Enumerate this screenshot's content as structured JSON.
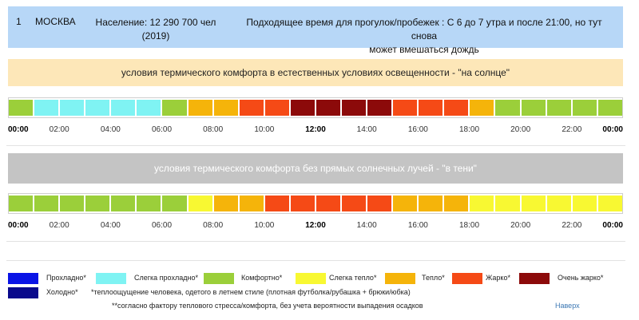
{
  "header": {
    "number": "1",
    "city": "МОСКВА",
    "population_line1": "Население: 12 290 700 чел",
    "population_line2": "(2019)",
    "best_time_line1": "Подходящее время для прогулок/пробежек : С 6 до 7 утра и после 21:00, но тут снова",
    "best_time_line2": "может вмешаться дождь"
  },
  "sun": {
    "title": "условия термического комфорта в естественных условиях освещенности - \"на солнце\"",
    "levels": [
      "comfortable",
      "slightly_cool",
      "slightly_cool",
      "slightly_cool",
      "slightly_cool",
      "slightly_cool",
      "comfortable",
      "warm",
      "warm",
      "hot",
      "hot",
      "very_hot",
      "very_hot",
      "very_hot",
      "very_hot",
      "hot",
      "hot",
      "hot",
      "warm",
      "comfortable",
      "comfortable",
      "comfortable",
      "comfortable",
      "comfortable"
    ]
  },
  "shade": {
    "title": "условия термического комфорта без прямых солнечных лучей - \"в тени\"",
    "levels": [
      "comfortable",
      "comfortable",
      "comfortable",
      "comfortable",
      "comfortable",
      "comfortable",
      "comfortable",
      "slightly_warm",
      "warm",
      "warm",
      "hot",
      "hot",
      "hot",
      "hot",
      "hot",
      "warm",
      "warm",
      "warm",
      "slightly_warm",
      "slightly_warm",
      "slightly_warm",
      "slightly_warm",
      "slightly_warm",
      "slightly_warm"
    ]
  },
  "axis_labels": [
    "00:00",
    "02:00",
    "04:00",
    "06:00",
    "08:00",
    "10:00",
    "12:00",
    "14:00",
    "16:00",
    "18:00",
    "20:00",
    "22:00",
    "00:00"
  ],
  "axis_bold": [
    true,
    false,
    false,
    false,
    false,
    false,
    true,
    false,
    false,
    false,
    false,
    false,
    true
  ],
  "colors": {
    "cool": "#0a14e6",
    "slightly_cool": "#7ff3f3",
    "comfortable": "#9bcf3a",
    "slightly_warm": "#f8f832",
    "warm": "#f5b40a",
    "hot": "#f54a16",
    "very_hot": "#8c0a0a",
    "cold": "#0a0a8c"
  },
  "legend": {
    "row1": [
      {
        "key": "cool",
        "label": "Прохладно*"
      },
      {
        "key": "slightly_cool",
        "label": "Слегка прохладно*"
      },
      {
        "key": "comfortable",
        "label": "Комфортно*"
      },
      {
        "key": "slightly_warm",
        "label": "Слегка тепло*"
      },
      {
        "key": "warm",
        "label": "Тепло*"
      },
      {
        "key": "hot",
        "label": "Жарко*"
      },
      {
        "key": "very_hot",
        "label": "Очень жарко*"
      }
    ],
    "cold": {
      "key": "cold",
      "label": "Холодно*"
    },
    "footnote1": "*теплоощущение человека, одетого в летнем стиле (плотная футболка/рубашка + брюки/юбка)",
    "footnote2": "**согласно фактору теплового стресса/комфорта, без учета вероятности выпадения осадков",
    "top_link": "Наверх"
  }
}
